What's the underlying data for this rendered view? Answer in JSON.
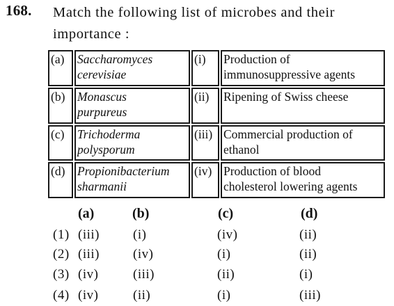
{
  "question": {
    "number": "168.",
    "text": "Match the following list of microbes and their importance :"
  },
  "table": {
    "rows": [
      {
        "left_label": "(a)",
        "microbe_line1": "Saccharomyces",
        "microbe_line2": "cerevisiae",
        "right_label": "(i)",
        "use_line1": "Production of",
        "use_line2": "immunosuppressive agents"
      },
      {
        "left_label": "(b)",
        "microbe_line1": "Monascus",
        "microbe_line2": "purpureus",
        "right_label": "(ii)",
        "use_line1": "Ripening of Swiss cheese",
        "use_line2": ""
      },
      {
        "left_label": "(c)",
        "microbe_line1": "Trichoderma",
        "microbe_line2": "polysporum",
        "right_label": "(iii)",
        "use_line1": "Commercial production of",
        "use_line2": "ethanol"
      },
      {
        "left_label": "(d)",
        "microbe_line1": "Propionibacterium",
        "microbe_line2": "sharmanii",
        "right_label": "(iv)",
        "use_line1": "Production of blood",
        "use_line2": "cholesterol lowering agents"
      }
    ]
  },
  "options": {
    "headers": [
      "(a)",
      "(b)",
      "(c)",
      "(d)"
    ],
    "rows": [
      {
        "num": "(1)",
        "a": "(iii)",
        "b": "(i)",
        "c": "(iv)",
        "d": "(ii)"
      },
      {
        "num": "(2)",
        "a": "(iii)",
        "b": "(iv)",
        "c": "(i)",
        "d": "(ii)"
      },
      {
        "num": "(3)",
        "a": "(iv)",
        "b": "(iii)",
        "c": "(ii)",
        "d": "(i)"
      },
      {
        "num": "(4)",
        "a": "(iv)",
        "b": "(ii)",
        "c": "(i)",
        "d": "(iii)"
      }
    ]
  }
}
